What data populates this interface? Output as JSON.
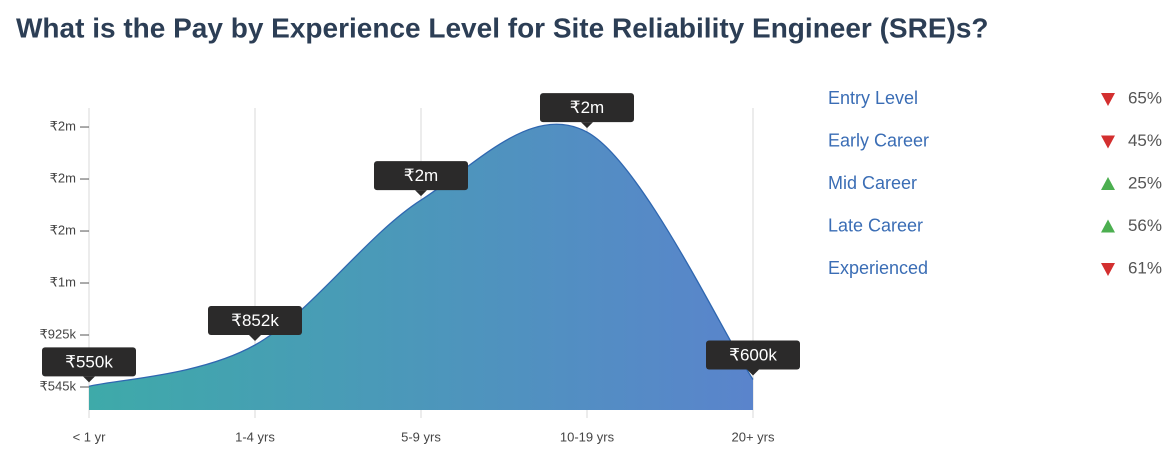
{
  "chart_data": {
    "type": "area",
    "title": "What is the Pay by Experience Level for Site Reliability Engineer (SRE)s?",
    "categories": [
      "< 1 yr",
      "1-4 yrs",
      "5-9 yrs",
      "10-19 yrs",
      "20+ yrs"
    ],
    "values": [
      550000,
      852000,
      1911000,
      2408000,
      600000
    ],
    "value_labels": [
      "₹550k",
      "₹852k",
      "₹2m",
      "₹2m",
      "₹600k"
    ],
    "ylim": [
      377000,
      2584000
    ],
    "yticks": [
      {
        "value": 545000,
        "label": "₹545k"
      },
      {
        "value": 925000,
        "label": "₹925k"
      },
      {
        "value": 1305000,
        "label": "₹1m"
      },
      {
        "value": 1685000,
        "label": "₹2m"
      },
      {
        "value": 2065000,
        "label": "₹2m"
      },
      {
        "value": 2445000,
        "label": "₹2m"
      }
    ],
    "grid": true,
    "legend": [
      {
        "name": "Entry Level",
        "trend": "down",
        "change": "65%"
      },
      {
        "name": "Early Career",
        "trend": "down",
        "change": "45%"
      },
      {
        "name": "Mid Career",
        "trend": "up",
        "change": "25%"
      },
      {
        "name": "Late Career",
        "trend": "up",
        "change": "56%"
      },
      {
        "name": "Experienced",
        "trend": "down",
        "change": "61%"
      }
    ]
  }
}
